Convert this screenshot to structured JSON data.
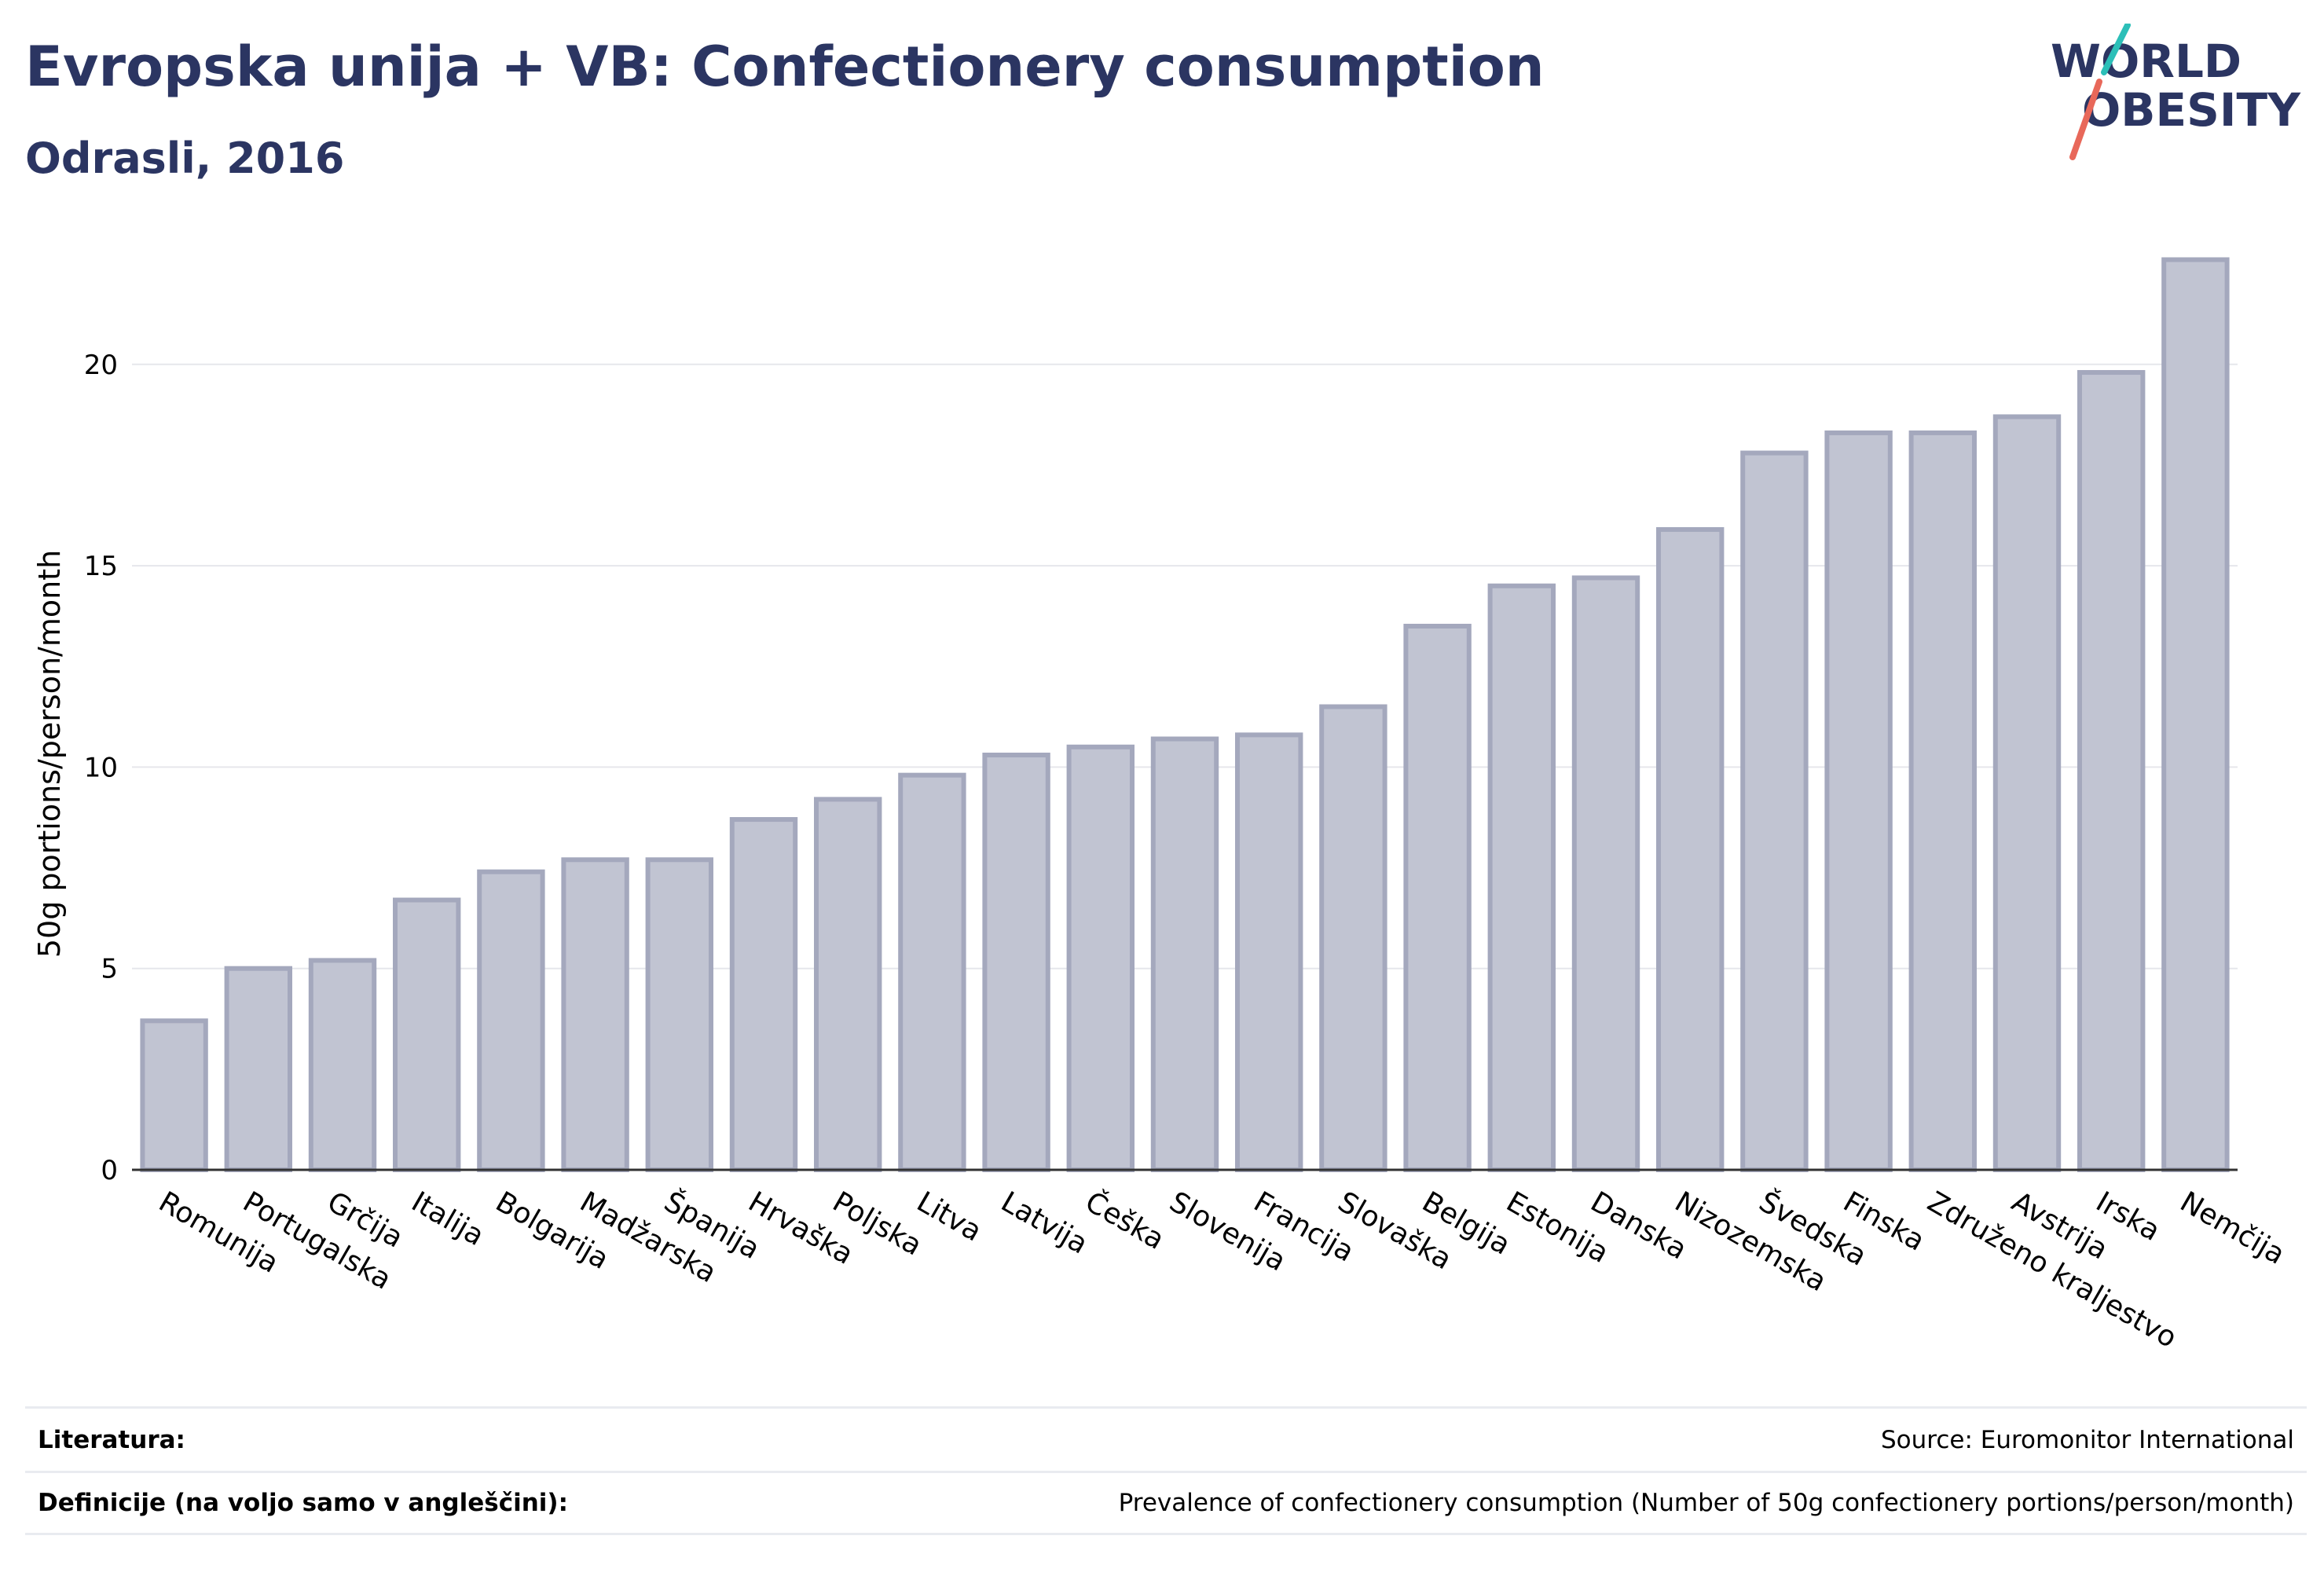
{
  "header": {
    "title": "Evropska unija + VB: Confectionery consumption",
    "subtitle": "Odrasli, 2016"
  },
  "logo": {
    "line1": "WORLD",
    "line2": "OBESITY",
    "accent_colors": [
      "#2cbfb8",
      "#e8685a"
    ]
  },
  "chart_data": {
    "type": "bar",
    "ylabel": "50g portions/person/month",
    "xlabel": "",
    "ylim": [
      0,
      23
    ],
    "yticks": [
      0,
      5,
      10,
      15,
      20
    ],
    "grid": true,
    "bar_fill": "#c1c4d2",
    "bar_stroke": "#a4a8bd",
    "categories": [
      "Romunija",
      "Portugalska",
      "Grčija",
      "Italija",
      "Bolgarija",
      "Madžarska",
      "Španija",
      "Hrvaška",
      "Poljska",
      "Litva",
      "Latvija",
      "Češka",
      "Slovenija",
      "Francija",
      "Slovaška",
      "Belgija",
      "Estonija",
      "Danska",
      "Nizozemska",
      "Švedska",
      "Finska",
      "Združeno kraljestvo",
      "Avstrija",
      "Irska",
      "Nemčija"
    ],
    "values": [
      3.7,
      5.0,
      5.2,
      6.7,
      7.4,
      7.7,
      7.7,
      8.7,
      9.2,
      9.8,
      10.3,
      10.5,
      10.7,
      10.8,
      11.5,
      13.5,
      14.5,
      14.7,
      15.9,
      17.8,
      18.3,
      18.3,
      18.7,
      19.8,
      22.6
    ]
  },
  "footer": {
    "references_label": "Literatura:",
    "references_value": "Source: Euromonitor International",
    "definitions_label": "Definicije (na voljo samo v angleščini):",
    "definitions_value": "Prevalence of confectionery consumption (Number of 50g confectionery portions/person/month)"
  }
}
